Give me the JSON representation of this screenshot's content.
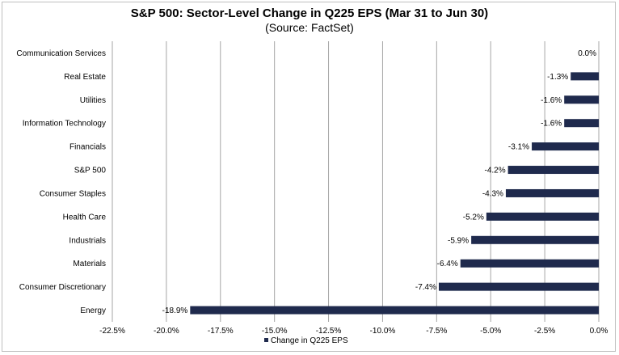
{
  "chart_data": {
    "type": "bar",
    "orientation": "horizontal",
    "title": "S&P 500: Sector-Level Change in Q225 EPS (Mar 31 to Jun 30)",
    "subtitle": "(Source: FactSet)",
    "xlabel": "",
    "ylabel": "",
    "xlim": [
      -22.5,
      0
    ],
    "x_ticks": [
      -22.5,
      -20.0,
      -17.5,
      -15.0,
      -12.5,
      -10.0,
      -7.5,
      -5.0,
      -2.5,
      0.0
    ],
    "x_tick_labels": [
      "-22.5%",
      "-20.0%",
      "-17.5%",
      "-15.0%",
      "-12.5%",
      "-10.0%",
      "-7.5%",
      "-5.0%",
      "-2.5%",
      "0.0%"
    ],
    "grid": "vertical",
    "legend_position": "bottom",
    "bar_color": "#1f2a4d",
    "categories": [
      "Communication Services",
      "Real Estate",
      "Utilities",
      "Information Technology",
      "Financials",
      "S&P 500",
      "Consumer Staples",
      "Health Care",
      "Industrials",
      "Materials",
      "Consumer Discretionary",
      "Energy"
    ],
    "series": [
      {
        "name": "Change in Q225 EPS",
        "values": [
          0.0,
          -1.3,
          -1.6,
          -1.6,
          -3.1,
          -4.2,
          -4.3,
          -5.2,
          -5.9,
          -6.4,
          -7.4,
          -18.9
        ],
        "labels": [
          "0.0%",
          "-1.3%",
          "-1.6%",
          "-1.6%",
          "-3.1%",
          "-4.2%",
          "-4.3%",
          "-5.2%",
          "-5.9%",
          "-6.4%",
          "-7.4%",
          "-18.9%"
        ]
      }
    ]
  }
}
